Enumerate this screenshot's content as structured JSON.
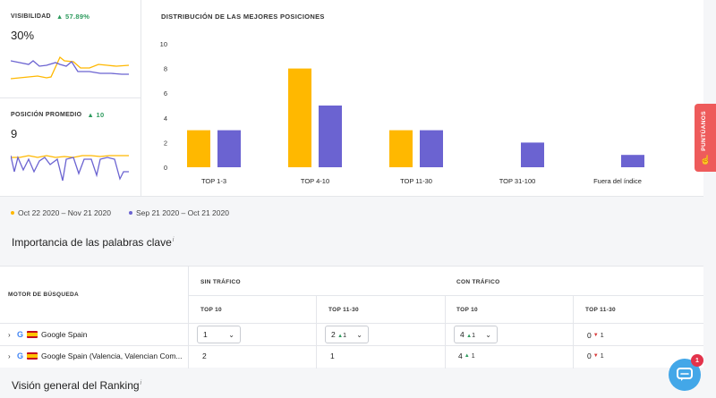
{
  "metrics": {
    "visibility": {
      "label": "VISIBILIDAD",
      "delta": "▲ 57.89%",
      "value": "30%"
    },
    "avg_position": {
      "label": "POSICIÓN PROMEDIO",
      "delta": "▲ 10",
      "value": "9"
    }
  },
  "chart_data": {
    "type": "bar",
    "title": "DISTRIBUCIÓN DE LAS MEJORES POSICIONES",
    "categories": [
      "TOP 1-3",
      "TOP 4-10",
      "TOP 11-30",
      "TOP 31-100",
      "Fuera del índice"
    ],
    "series": [
      {
        "name": "Oct 22 2020 – Nov 21 2020",
        "values": [
          3,
          8,
          3,
          0,
          0
        ],
        "color": "#ffb800"
      },
      {
        "name": "Sep 21 2020 – Oct 21 2020",
        "values": [
          3,
          5,
          3,
          2,
          1
        ],
        "color": "#6b63d1"
      }
    ],
    "yticks": [
      0,
      2,
      4,
      6,
      8,
      10
    ],
    "ylim": [
      0,
      10
    ],
    "grid": false
  },
  "legend": {
    "current": "Oct 22 2020 – Nov 21 2020",
    "previous": "Sep 21 2020 – Oct 21 2020"
  },
  "colors": {
    "current": "#ffb800",
    "previous": "#6b63d1",
    "up": "#2e9b5e",
    "down": "#d93b3b"
  },
  "sections": {
    "keywords_importance": "Importancia de las palabras clave",
    "ranking_overview": "Visión general del Ranking",
    "info_mark": "i"
  },
  "table": {
    "col_engine": "MOTOR DE BÚSQUEDA",
    "group_no_traffic": "SIN TRÁFICO",
    "group_traffic": "CON TRÁFICO",
    "top10": "TOP 10",
    "top11_30": "TOP 11-30",
    "rows": [
      {
        "engine": "Google Spain",
        "c1": "1",
        "c2": "2",
        "c2_delta": "1",
        "c3": "4",
        "c3_delta": "1",
        "c4": "0",
        "c4_delta": "1"
      },
      {
        "engine": "Google Spain (Valencia, Valencian Com...",
        "c1": "2",
        "c2": "1",
        "c3": "4",
        "c3_delta": "1",
        "c4": "0",
        "c4_delta": "1"
      }
    ]
  },
  "side_tab": {
    "label": "PUNTÚANOS"
  },
  "chat": {
    "badge": "1"
  },
  "icons": {
    "google": "G",
    "chevron_right": "›",
    "chevron_down": "⌄"
  }
}
